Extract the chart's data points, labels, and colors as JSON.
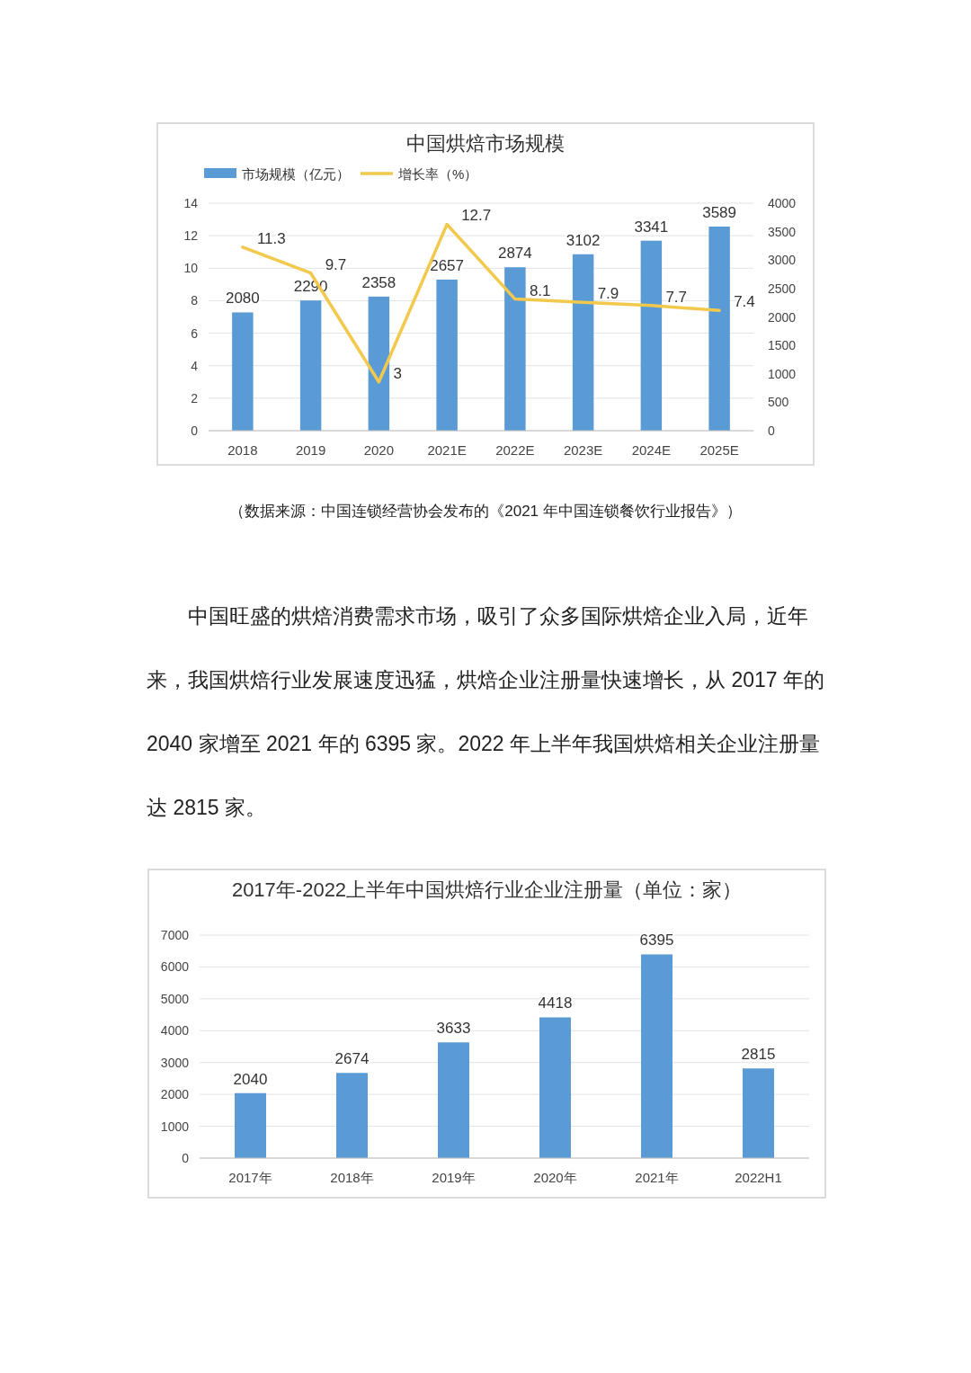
{
  "chart_data": [
    {
      "type": "bar",
      "title": "中国烘焙市场规模",
      "categories": [
        "2018",
        "2019",
        "2020",
        "2021E",
        "2022E",
        "2023E",
        "2024E",
        "2025E"
      ],
      "series": [
        {
          "name": "市场规模（亿元）",
          "type": "bar",
          "axis": "y2",
          "color": "#5b9bd5",
          "values": [
            2080,
            2290,
            2358,
            2657,
            2874,
            3102,
            3341,
            3589
          ]
        },
        {
          "name": "增长率（%）",
          "type": "line",
          "color": "#f2c94c",
          "values": [
            11.3,
            9.7,
            3,
            12.7,
            8.1,
            7.9,
            7.7,
            7.4
          ]
        }
      ],
      "ylim": [
        0,
        14
      ],
      "yticks": [
        0,
        2,
        4,
        6,
        8,
        10,
        12,
        14
      ],
      "y2lim": [
        0,
        4000
      ],
      "y2ticks": [
        0,
        500,
        1000,
        1500,
        2000,
        2500,
        3000,
        3500,
        4000
      ],
      "grid": "y",
      "legend": "top left",
      "data_labels": true,
      "annotations": [
        "（数据来源：中国连锁经营协会发布的《2021 年中国连锁餐饮行业报告》）"
      ]
    },
    {
      "type": "bar",
      "title": "2017年-2022上半年中国烘焙行业企业注册量（单位：家）",
      "categories": [
        "2017年",
        "2018年",
        "2019年",
        "2020年",
        "2021年",
        "2022H1"
      ],
      "series": [
        {
          "color": "#5b9bd5",
          "values": [
            2040,
            2674,
            3633,
            4418,
            6395,
            2815
          ]
        }
      ],
      "ylim": [
        0,
        7000
      ],
      "yticks": [
        0,
        1000,
        2000,
        3000,
        4000,
        5000,
        6000,
        7000
      ],
      "grid": "y",
      "data_labels": true,
      "annotations": [
        "中国旺盛的烘焙消费需求市场，吸引了众多国际烘焙企业入局，近年来，我国烘焙行业发展速度迅猛，烘焙企业注册量快速增长，从 2017 年的 2040 家增至 2021 年的 6395 家。2022 年上半年我国烘焙相关企业注册量达 2815 家。"
      ]
    }
  ]
}
